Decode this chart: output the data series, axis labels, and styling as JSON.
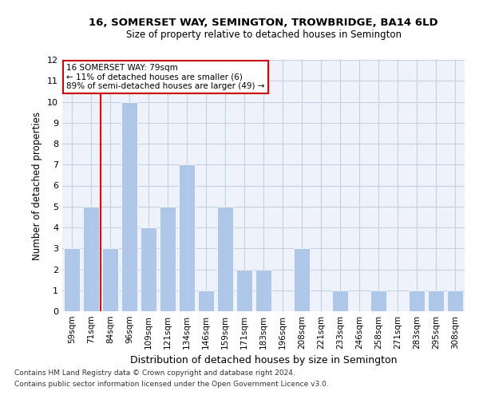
{
  "title": "16, SOMERSET WAY, SEMINGTON, TROWBRIDGE, BA14 6LD",
  "subtitle": "Size of property relative to detached houses in Semington",
  "xlabel": "Distribution of detached houses by size in Semington",
  "ylabel": "Number of detached properties",
  "categories": [
    "59sqm",
    "71sqm",
    "84sqm",
    "96sqm",
    "109sqm",
    "121sqm",
    "134sqm",
    "146sqm",
    "159sqm",
    "171sqm",
    "183sqm",
    "196sqm",
    "208sqm",
    "221sqm",
    "233sqm",
    "246sqm",
    "258sqm",
    "271sqm",
    "283sqm",
    "295sqm",
    "308sqm"
  ],
  "values": [
    3,
    5,
    3,
    10,
    4,
    5,
    7,
    1,
    5,
    2,
    2,
    0,
    3,
    0,
    1,
    0,
    1,
    0,
    1,
    1,
    1
  ],
  "bar_color": "#aec6e8",
  "reference_line_color": "#cc0000",
  "annotation_text_line1": "16 SOMERSET WAY: 79sqm",
  "annotation_text_line2": "← 11% of detached houses are smaller (6)",
  "annotation_text_line3": "89% of semi-detached houses are larger (49) →",
  "annotation_box_color": "#cc0000",
  "ylim": [
    0,
    12
  ],
  "yticks": [
    0,
    1,
    2,
    3,
    4,
    5,
    6,
    7,
    8,
    9,
    10,
    11,
    12
  ],
  "footer_line1": "Contains HM Land Registry data © Crown copyright and database right 2024.",
  "footer_line2": "Contains public sector information licensed under the Open Government Licence v3.0.",
  "bg_color": "#eef2fb",
  "grid_color": "#c8cfe0"
}
